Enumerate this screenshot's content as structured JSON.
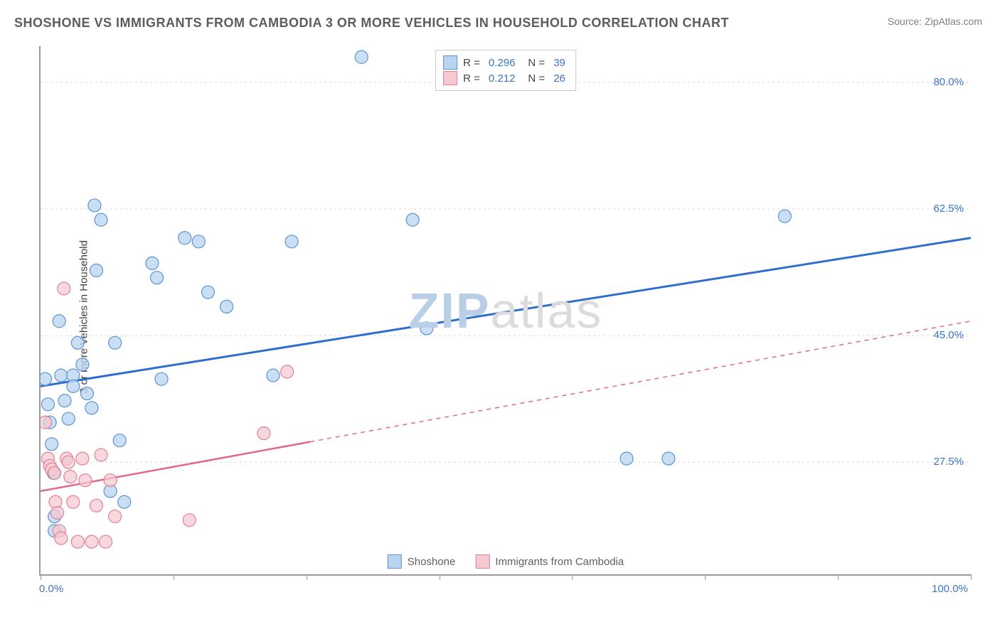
{
  "title": "SHOSHONE VS IMMIGRANTS FROM CAMBODIA 3 OR MORE VEHICLES IN HOUSEHOLD CORRELATION CHART",
  "source": "Source: ZipAtlas.com",
  "y_axis_label": "3 or more Vehicles in Household",
  "watermark": {
    "prefix": "ZIP",
    "suffix": "atlas",
    "prefix_color": "#b9cfe8",
    "suffix_color": "#dcdcdc"
  },
  "axes": {
    "x_min": 0.0,
    "x_max": 100.0,
    "y_min": 12.0,
    "y_max": 85.0,
    "x_ticks": [
      0.0,
      100.0
    ],
    "x_tick_labels": [
      "0.0%",
      "100.0%"
    ],
    "x_minor_ticks": [
      14.3,
      28.6,
      42.9,
      57.1,
      71.4,
      85.7
    ],
    "y_ticks": [
      27.5,
      45.0,
      62.5,
      80.0
    ],
    "y_tick_labels": [
      "27.5%",
      "45.0%",
      "62.5%",
      "80.0%"
    ],
    "grid_color": "#d7d7d7",
    "tick_label_color": "#3a74c5",
    "axis_label_color": "#404040",
    "axis_line_color": "#9a9a9a",
    "title_color": "#5c5c5c",
    "title_fontsize": 18,
    "label_fontsize": 15
  },
  "series": [
    {
      "name": "Shoshone",
      "color_fill": "#bad4f0",
      "color_stroke": "#5c93d4",
      "marker_radius": 9,
      "marker_opacity": 0.75,
      "R": "0.296",
      "N": "39",
      "trend": {
        "x1": 0.0,
        "y1": 38.0,
        "x2": 100.0,
        "y2": 58.5,
        "solid_until_x": 100.0,
        "stroke": "#2f6ecc",
        "stroke_width": 3
      },
      "points": [
        {
          "x": 0.5,
          "y": 39.0
        },
        {
          "x": 0.8,
          "y": 35.5
        },
        {
          "x": 1.0,
          "y": 33.0
        },
        {
          "x": 1.2,
          "y": 30.0
        },
        {
          "x": 1.4,
          "y": 26.0
        },
        {
          "x": 1.5,
          "y": 20.0
        },
        {
          "x": 1.5,
          "y": 18.0
        },
        {
          "x": 2.0,
          "y": 47.0
        },
        {
          "x": 2.2,
          "y": 39.5
        },
        {
          "x": 2.6,
          "y": 36.0
        },
        {
          "x": 3.0,
          "y": 33.5
        },
        {
          "x": 3.5,
          "y": 39.5
        },
        {
          "x": 3.5,
          "y": 38.0
        },
        {
          "x": 4.0,
          "y": 44.0
        },
        {
          "x": 4.5,
          "y": 41.0
        },
        {
          "x": 5.0,
          "y": 37.0
        },
        {
          "x": 5.5,
          "y": 35.0
        },
        {
          "x": 5.8,
          "y": 63.0
        },
        {
          "x": 6.0,
          "y": 54.0
        },
        {
          "x": 6.5,
          "y": 61.0
        },
        {
          "x": 7.5,
          "y": 23.5
        },
        {
          "x": 8.0,
          "y": 44.0
        },
        {
          "x": 8.5,
          "y": 30.5
        },
        {
          "x": 9.0,
          "y": 22.0
        },
        {
          "x": 12.0,
          "y": 55.0
        },
        {
          "x": 12.5,
          "y": 53.0
        },
        {
          "x": 13.0,
          "y": 39.0
        },
        {
          "x": 15.5,
          "y": 58.5
        },
        {
          "x": 17.0,
          "y": 58.0
        },
        {
          "x": 18.0,
          "y": 51.0
        },
        {
          "x": 20.0,
          "y": 49.0
        },
        {
          "x": 25.0,
          "y": 39.5
        },
        {
          "x": 27.0,
          "y": 58.0
        },
        {
          "x": 34.5,
          "y": 83.5
        },
        {
          "x": 40.0,
          "y": 61.0
        },
        {
          "x": 41.5,
          "y": 46.0
        },
        {
          "x": 63.0,
          "y": 28.0
        },
        {
          "x": 67.5,
          "y": 28.0
        },
        {
          "x": 80.0,
          "y": 61.5
        }
      ]
    },
    {
      "name": "Immigrants from Cambodia",
      "color_fill": "#f4c9d2",
      "color_stroke": "#e28095",
      "marker_radius": 9,
      "marker_opacity": 0.72,
      "R": "0.212",
      "N": "26",
      "trend": {
        "x1": 0.0,
        "y1": 23.5,
        "x2": 100.0,
        "y2": 47.0,
        "solid_until_x": 29.0,
        "stroke": "#e06a84",
        "stroke_width": 2.5,
        "dash": "6 6"
      },
      "points": [
        {
          "x": 0.5,
          "y": 33.0
        },
        {
          "x": 0.8,
          "y": 28.0
        },
        {
          "x": 1.0,
          "y": 27.0
        },
        {
          "x": 1.2,
          "y": 26.5
        },
        {
          "x": 1.5,
          "y": 26.0
        },
        {
          "x": 1.6,
          "y": 22.0
        },
        {
          "x": 1.8,
          "y": 20.5
        },
        {
          "x": 2.0,
          "y": 18.0
        },
        {
          "x": 2.2,
          "y": 17.0
        },
        {
          "x": 2.5,
          "y": 51.5
        },
        {
          "x": 2.8,
          "y": 28.0
        },
        {
          "x": 3.0,
          "y": 27.5
        },
        {
          "x": 3.2,
          "y": 25.5
        },
        {
          "x": 3.5,
          "y": 22.0
        },
        {
          "x": 4.0,
          "y": 16.5
        },
        {
          "x": 4.5,
          "y": 28.0
        },
        {
          "x": 4.8,
          "y": 25.0
        },
        {
          "x": 5.5,
          "y": 16.5
        },
        {
          "x": 6.0,
          "y": 21.5
        },
        {
          "x": 6.5,
          "y": 28.5
        },
        {
          "x": 7.0,
          "y": 16.5
        },
        {
          "x": 7.5,
          "y": 25.0
        },
        {
          "x": 8.0,
          "y": 20.0
        },
        {
          "x": 16.0,
          "y": 19.5
        },
        {
          "x": 24.0,
          "y": 31.5
        },
        {
          "x": 26.5,
          "y": 40.0
        }
      ]
    }
  ],
  "legend_bottom": [
    {
      "label": "Shoshone",
      "fill": "#bad4f0",
      "stroke": "#5c93d4"
    },
    {
      "label": "Immigrants from Cambodia",
      "fill": "#f4c9d2",
      "stroke": "#e28095"
    }
  ],
  "legend_top_labels": {
    "r": "R =",
    "n": "N ="
  }
}
